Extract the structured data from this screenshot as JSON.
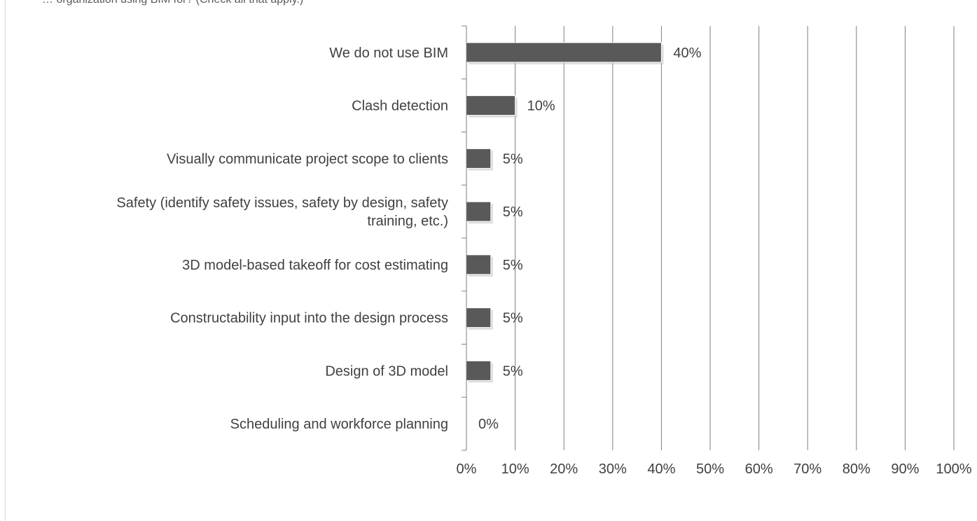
{
  "header_text": "… organization using BIM for? (Check all that apply.)",
  "chart_data": {
    "type": "bar",
    "orientation": "horizontal",
    "title": "",
    "xlabel": "",
    "ylabel": "",
    "categories": [
      "We do not use BIM",
      "Clash detection",
      "Visually communicate project scope to clients",
      "Safety (identify safety issues, safety by design, safety training, etc.)",
      "3D model-based takeoff for cost estimating",
      "Constructability input into the design process",
      "Design of 3D model",
      "Scheduling and workforce planning"
    ],
    "category_lines": [
      [
        "We do not use BIM"
      ],
      [
        "Clash detection"
      ],
      [
        "Visually communicate project scope to clients"
      ],
      [
        "Safety (identify safety issues, safety by design, safety",
        "training, etc.)"
      ],
      [
        "3D model-based takeoff for cost estimating"
      ],
      [
        "Constructability input into the design process"
      ],
      [
        "Design of 3D model"
      ],
      [
        "Scheduling and workforce planning"
      ]
    ],
    "values": [
      40,
      10,
      5,
      5,
      5,
      5,
      5,
      0
    ],
    "value_labels": [
      "40%",
      "10%",
      "5%",
      "5%",
      "5%",
      "5%",
      "5%",
      "0%"
    ],
    "xlim": [
      0,
      100
    ],
    "x_ticks": [
      0,
      10,
      20,
      30,
      40,
      50,
      60,
      70,
      80,
      90,
      100
    ],
    "x_tick_labels": [
      "0%",
      "10%",
      "20%",
      "30%",
      "40%",
      "50%",
      "60%",
      "70%",
      "80%",
      "90%",
      "100%"
    ],
    "grid": "vertical",
    "legend": "none",
    "bar_color": "#595959",
    "grid_color": "#7f7f7f",
    "text_color": "#404040"
  }
}
